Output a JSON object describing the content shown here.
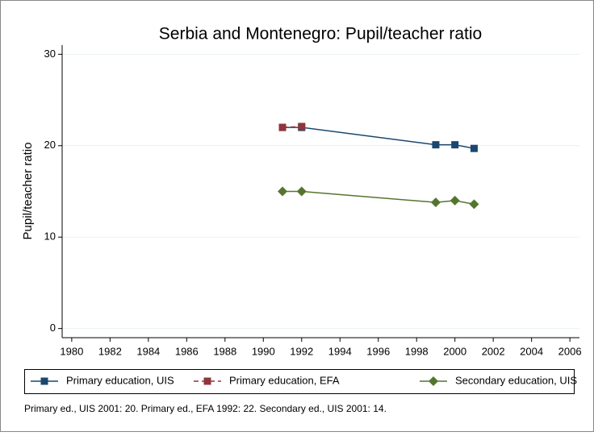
{
  "chart_data": {
    "type": "line",
    "title": "Serbia and Montenegro: Pupil/teacher ratio",
    "y_label": "Pupil/teacher ratio",
    "xlim": [
      1979.5,
      2006.5
    ],
    "xticks": [
      1980,
      1982,
      1984,
      1986,
      1988,
      1990,
      1992,
      1994,
      1996,
      1998,
      2000,
      2002,
      2004,
      2006
    ],
    "ylim": [
      -1,
      31
    ],
    "yticks": [
      0,
      10,
      20,
      30
    ],
    "grid": true,
    "legend": "bottom",
    "series": [
      {
        "name": "Primary education, UIS",
        "color": "#1a476f",
        "marker": "square",
        "dash": false,
        "x": [
          1991,
          1992,
          1999,
          2000,
          2001
        ],
        "values": [
          22.0,
          22.0,
          20.1,
          20.1,
          19.7
        ]
      },
      {
        "name": "Primary education, EFA",
        "color": "#90353b",
        "marker": "square",
        "dash": true,
        "x": [
          1991,
          1992
        ],
        "values": [
          22.0,
          22.1
        ]
      },
      {
        "name": "Secondary education, UIS",
        "color": "#55752f",
        "marker": "diamond",
        "dash": false,
        "x": [
          1991,
          1992,
          1999,
          2000,
          2001
        ],
        "values": [
          15.0,
          15.0,
          13.8,
          14.0,
          13.6
        ]
      }
    ],
    "note": "Primary ed., UIS 2001: 20. Primary ed., EFA 1992: 22. Secondary ed., UIS 2001: 14."
  }
}
